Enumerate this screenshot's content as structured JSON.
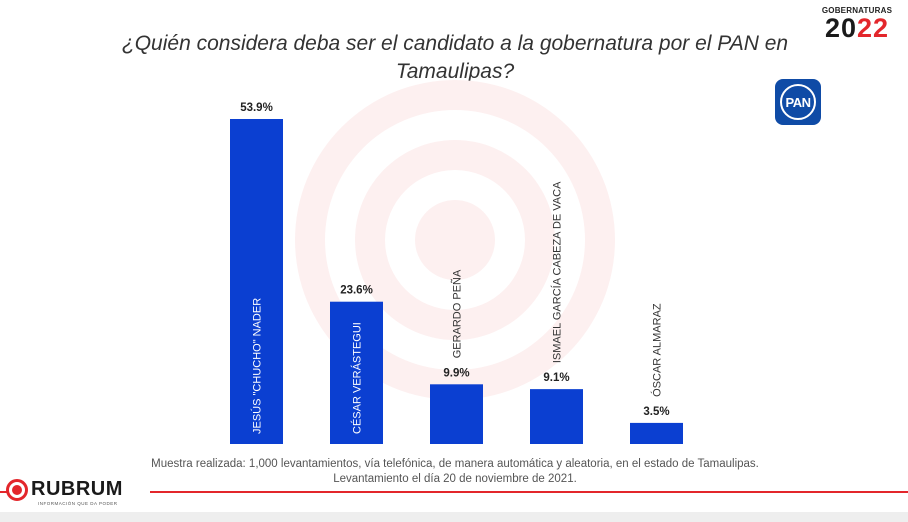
{
  "title": "¿Quién considera deba ser el candidato a la gobernatura por el PAN en Tamaulipas?",
  "badge": {
    "small": "GOBERNATURAS",
    "year_a": "20",
    "year_b": "22"
  },
  "pan_logo": "PAN",
  "colors": {
    "bar": "#0b3fd1",
    "accent": "#e3262b"
  },
  "chart_data": {
    "type": "bar",
    "title": "¿Quién considera deba ser el candidato a la gobernatura por el PAN en Tamaulipas?",
    "categories": [
      "JESÚS \"CHUCHO\" NADER",
      "CÉSAR VERÁSTEGUI",
      "GERARDO PEÑA",
      "ISMAEL GARCÍA CABEZA DE VACA",
      "ÓSCAR ALMARAZ"
    ],
    "values": [
      53.9,
      23.6,
      9.9,
      9.1,
      3.5
    ],
    "value_labels": [
      "53.9%",
      "23.6%",
      "9.9%",
      "9.1%",
      "3.5%"
    ],
    "ylim": [
      0,
      53.9
    ],
    "xlabel": "",
    "ylabel": "",
    "unit": "%"
  },
  "note": {
    "line1": "Muestra realizada: 1,000 levantamientos, vía telefónica, de manera automática y aleatoria, en el estado de Tamaulipas.",
    "line2": "Levantamiento el día 20 de noviembre de 2021."
  },
  "brand": {
    "name": "RUBRUM",
    "tagline": "INFORMACIÓN QUE DA PODER"
  }
}
